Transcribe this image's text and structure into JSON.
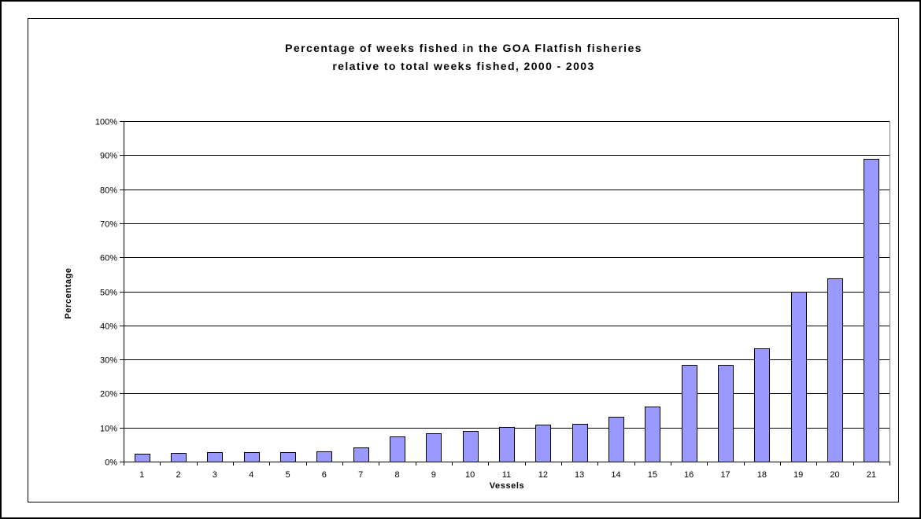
{
  "chart_data": {
    "type": "bar",
    "title_lines": [
      "Percentage of weeks fished in the GOA Flatfish fisheries",
      "relative to total weeks fished, 2000 - 2003"
    ],
    "xlabel": "Vessels",
    "ylabel": "Percentage",
    "categories": [
      "1",
      "2",
      "3",
      "4",
      "5",
      "6",
      "7",
      "8",
      "9",
      "10",
      "11",
      "12",
      "13",
      "14",
      "15",
      "16",
      "17",
      "18",
      "19",
      "20",
      "21"
    ],
    "values": [
      2.2,
      2.6,
      2.8,
      2.8,
      2.8,
      3.0,
      4.2,
      7.4,
      8.2,
      8.9,
      10.1,
      10.8,
      11.0,
      13.2,
      16.1,
      28.3,
      28.5,
      33.3,
      50.0,
      53.7,
      89.0
    ],
    "ylim": [
      0,
      100
    ],
    "ytick_labels": [
      "0%",
      "10%",
      "20%",
      "30%",
      "40%",
      "50%",
      "60%",
      "70%",
      "80%",
      "90%",
      "100%"
    ],
    "grid": true,
    "legend": "none",
    "bar_color": "#9999ff",
    "bar_edge_color": "#000000"
  }
}
